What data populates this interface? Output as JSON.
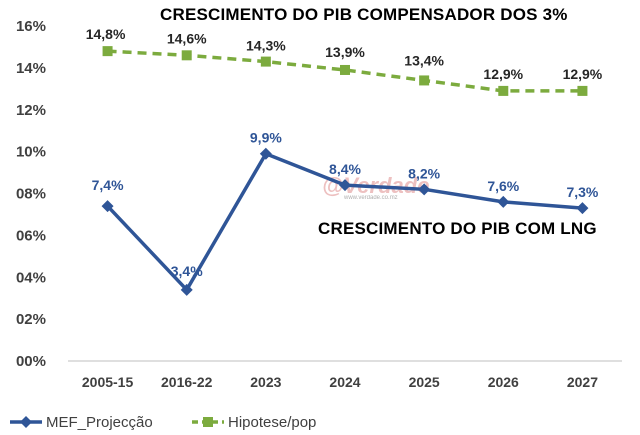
{
  "chart_data": {
    "type": "line",
    "categories": [
      "2005-15",
      "2016-22",
      "2023",
      "2024",
      "2025",
      "2026",
      "2027"
    ],
    "series": [
      {
        "name": "MEF_Projecção",
        "values": [
          7.4,
          3.4,
          9.9,
          8.4,
          8.2,
          7.6,
          7.3
        ],
        "labels": [
          "7,4%",
          "3,4%",
          "9,9%",
          "8,4%",
          "8,2%",
          "7,6%",
          "7,3%"
        ],
        "color": "#2F5597",
        "style": "solid",
        "marker": "diamond"
      },
      {
        "name": "Hipotese/pop",
        "values": [
          14.8,
          14.6,
          14.3,
          13.9,
          13.4,
          12.9,
          12.9
        ],
        "labels": [
          "14,8%",
          "14,6%",
          "14,3%",
          "13,9%",
          "13,4%",
          "12,9%",
          "12,9%"
        ],
        "color": "#7CAB3E",
        "style": "dashed",
        "marker": "square"
      }
    ],
    "ylim": [
      0,
      16
    ],
    "yticks": [
      0,
      2,
      4,
      6,
      8,
      10,
      12,
      14,
      16
    ],
    "ytick_labels": [
      "00%",
      "02%",
      "04%",
      "06%",
      "08%",
      "10%",
      "12%",
      "14%",
      "16%"
    ],
    "annotations": {
      "top": "CRESCIMENTO DO PIB COMPENSADOR DOS 3%",
      "middle": "CRESCIMENTO DO PIB COM LNG"
    },
    "legend_position": "bottom-left",
    "grid": false,
    "xlabel": "",
    "ylabel": ""
  },
  "watermark": {
    "text": "@Verdade",
    "subtext": "www.verdade.co.mz"
  }
}
